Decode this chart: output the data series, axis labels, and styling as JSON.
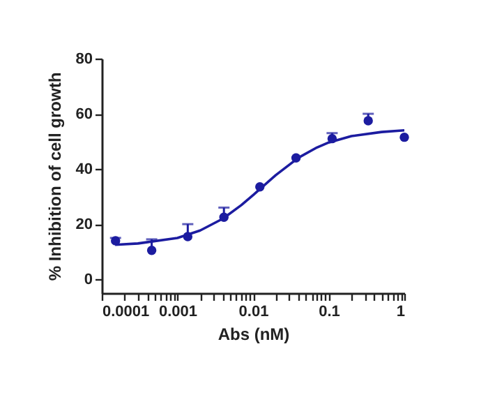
{
  "chart_data": {
    "type": "scatter",
    "xlabel": "Abs (nM)",
    "ylabel": "% Inhibition of cell growth",
    "log": "x",
    "xlim": [
      0.0001,
      1
    ],
    "ylim": [
      -5,
      80
    ],
    "yticks": [
      0,
      20,
      40,
      60,
      80
    ],
    "xticks": [
      {
        "value": 0.0001,
        "label": "0.0001"
      },
      {
        "value": 0.0002,
        "label": null
      },
      {
        "value": 0.0003,
        "label": null
      },
      {
        "value": 0.0004,
        "label": null
      },
      {
        "value": 0.0005,
        "label": null
      },
      {
        "value": 0.0006,
        "label": null
      },
      {
        "value": 0.0007,
        "label": null
      },
      {
        "value": 0.0008,
        "label": null
      },
      {
        "value": 0.0009,
        "label": null
      },
      {
        "value": 0.001,
        "label": "0.001"
      },
      {
        "value": 0.002,
        "label": null
      },
      {
        "value": 0.003,
        "label": null
      },
      {
        "value": 0.004,
        "label": null
      },
      {
        "value": 0.005,
        "label": null
      },
      {
        "value": 0.006,
        "label": null
      },
      {
        "value": 0.007,
        "label": null
      },
      {
        "value": 0.008,
        "label": null
      },
      {
        "value": 0.009,
        "label": null
      },
      {
        "value": 0.01,
        "label": "0.01"
      },
      {
        "value": 0.02,
        "label": null
      },
      {
        "value": 0.03,
        "label": null
      },
      {
        "value": 0.04,
        "label": null
      },
      {
        "value": 0.05,
        "label": null
      },
      {
        "value": 0.06,
        "label": null
      },
      {
        "value": 0.07,
        "label": null
      },
      {
        "value": 0.08,
        "label": null
      },
      {
        "value": 0.09,
        "label": null
      },
      {
        "value": 0.1,
        "label": "0.1"
      },
      {
        "value": 0.2,
        "label": null
      },
      {
        "value": 0.3,
        "label": null
      },
      {
        "value": 0.4,
        "label": null
      },
      {
        "value": 0.5,
        "label": null
      },
      {
        "value": 0.6,
        "label": null
      },
      {
        "value": 0.7,
        "label": null
      },
      {
        "value": 0.8,
        "label": null
      },
      {
        "value": 0.9,
        "label": null
      },
      {
        "value": 1,
        "label": "1"
      }
    ],
    "marker": "circle",
    "series": [
      {
        "color": "#1c1ca0",
        "x": [
          0.000152,
          0.000457,
          0.00137,
          0.00412,
          0.0123,
          0.037,
          0.111,
          0.333,
          1
        ],
        "values": [
          14,
          10.5,
          15.5,
          22.5,
          33.5,
          44,
          51,
          57.5,
          51.5
        ],
        "errors": [
          [
            14,
            15
          ],
          [
            10.5,
            14.5
          ],
          [
            15.5,
            20
          ],
          [
            22.5,
            26
          ],
          null,
          null,
          [
            51,
            53
          ],
          [
            57.5,
            60
          ],
          null
        ]
      },
      {
        "type": "line",
        "color": "#1c1ca0",
        "line_style": "solid",
        "marker": "none",
        "x": [
          0.00015,
          0.0003,
          0.001,
          0.002,
          0.004,
          0.007,
          0.01,
          0.02,
          0.04,
          0.07,
          0.1,
          0.2,
          0.5,
          1
        ],
        "values": [
          12.5,
          13,
          15,
          17.7,
          22,
          26.9,
          30.5,
          37.8,
          44.1,
          47.8,
          49.6,
          51.9,
          53.4,
          54
        ]
      }
    ]
  }
}
